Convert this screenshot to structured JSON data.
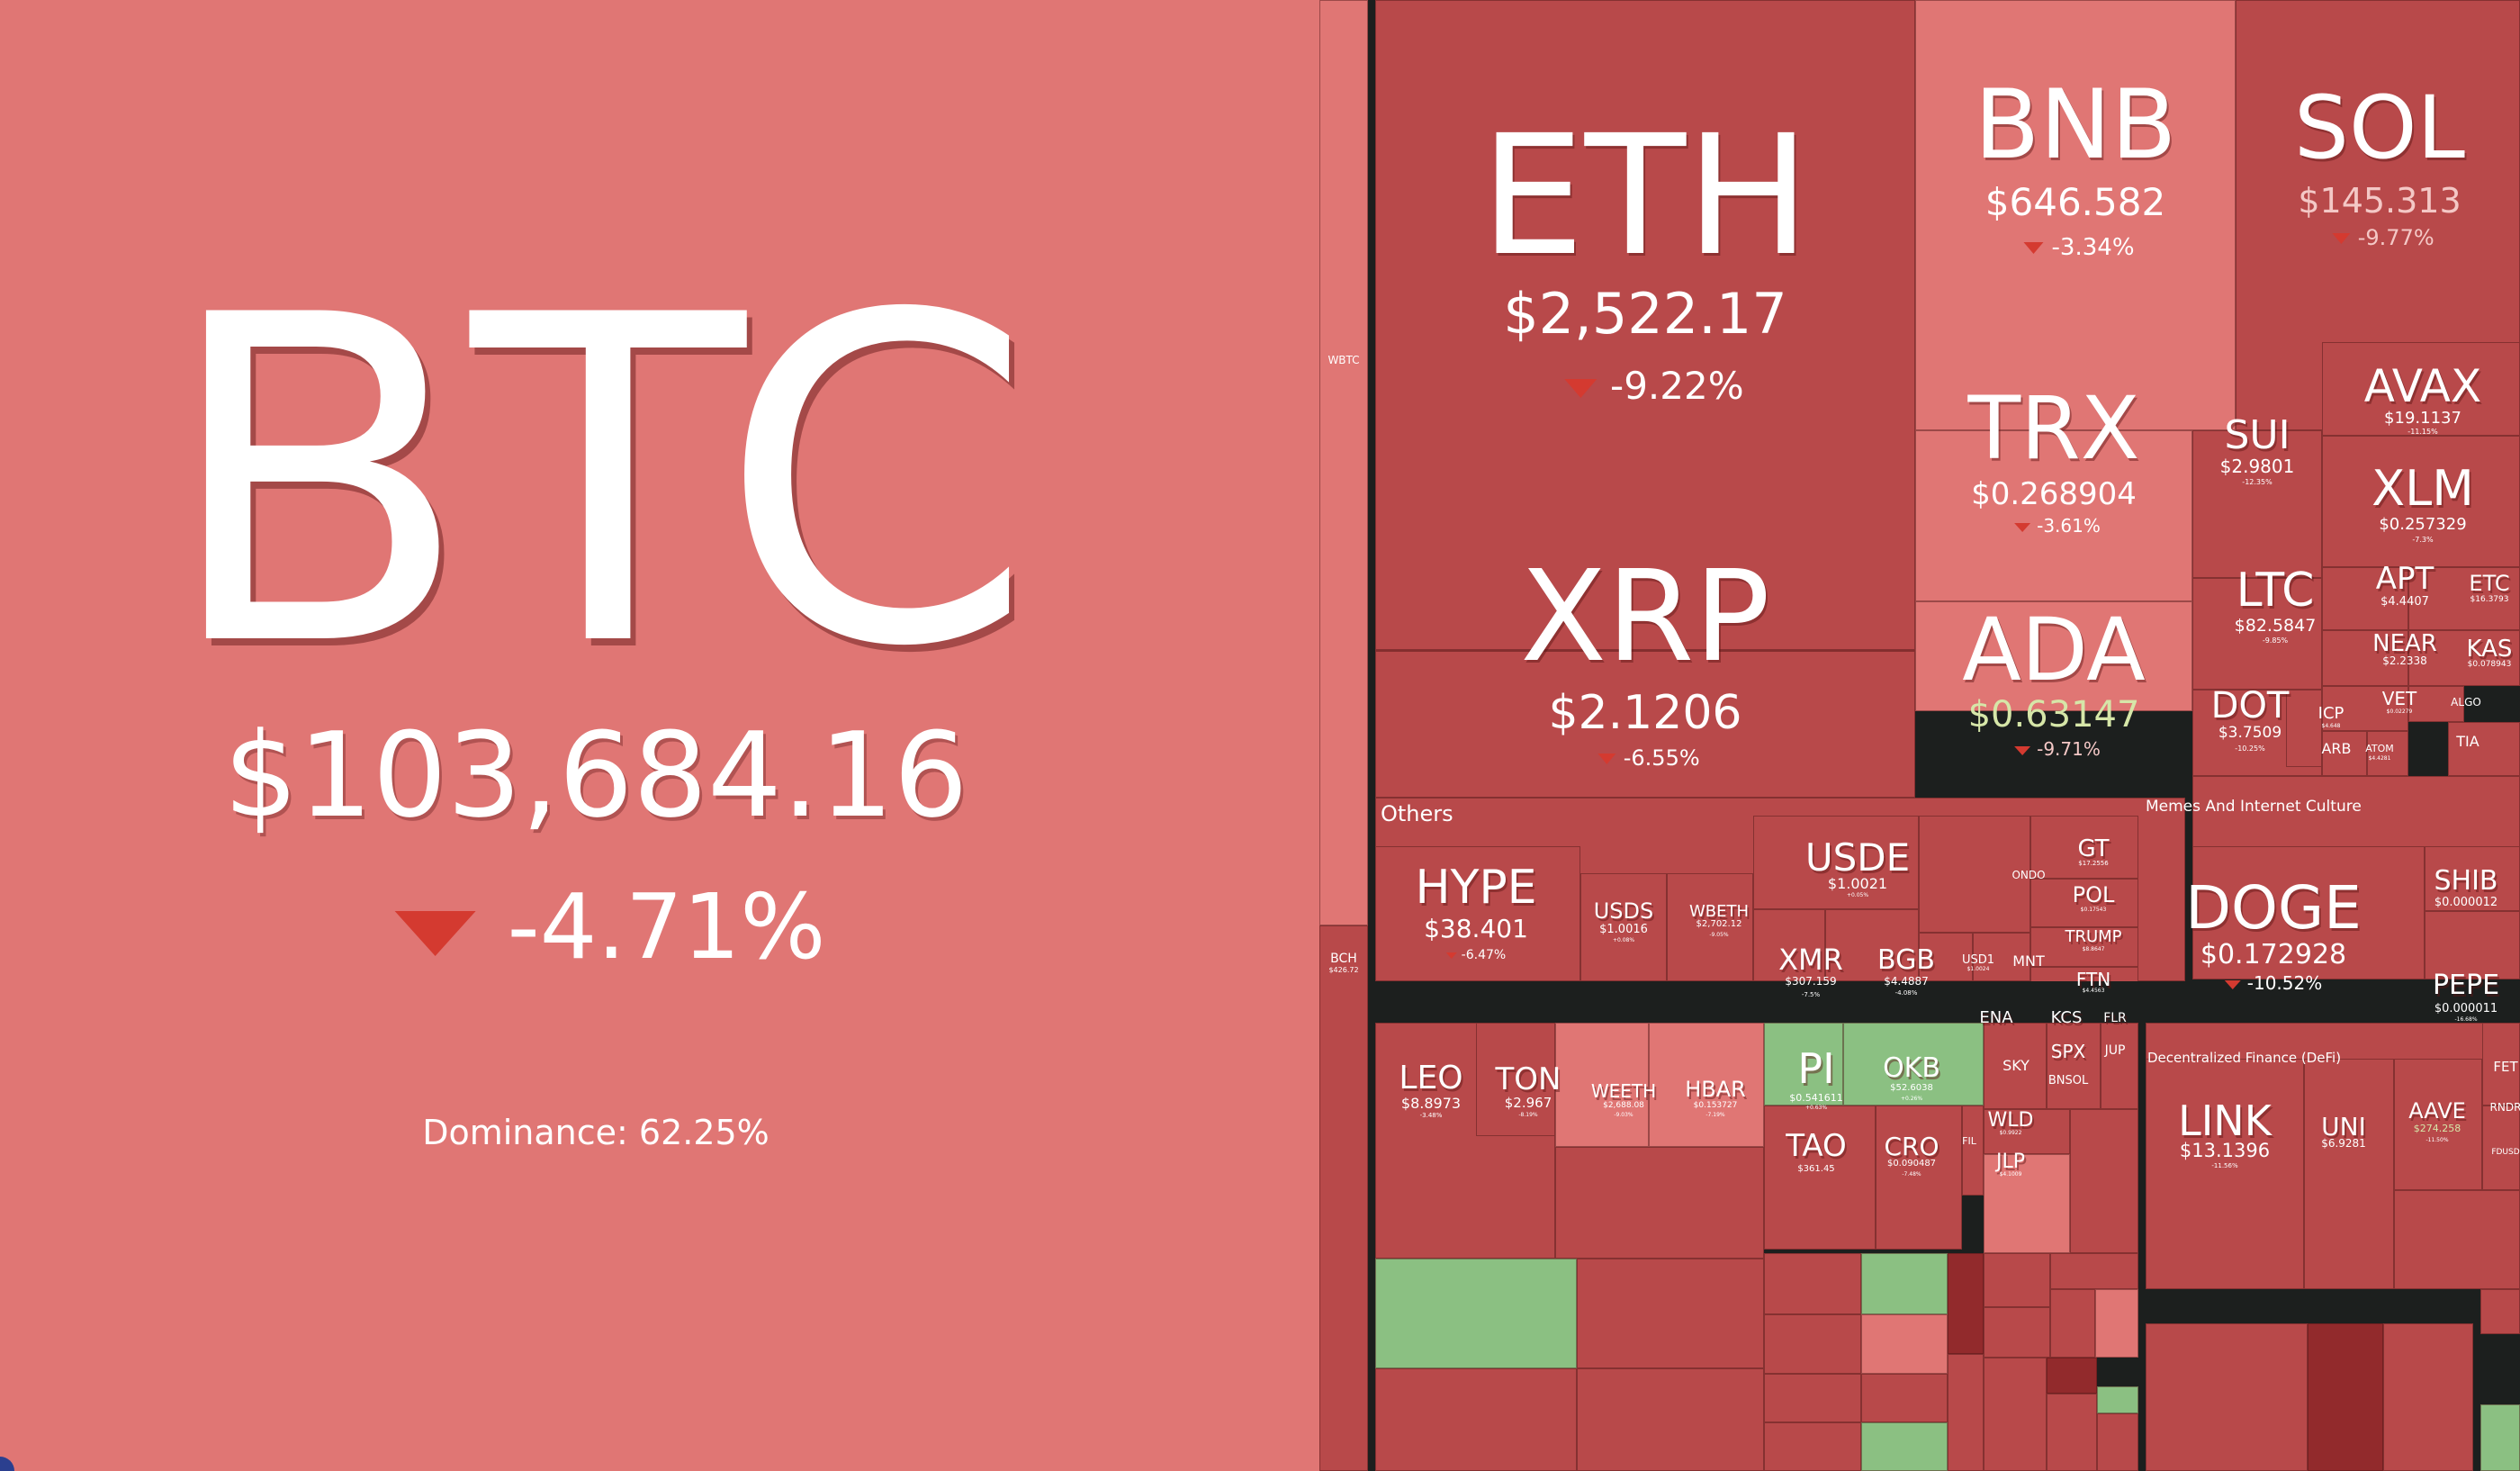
{
  "btc": {
    "symbol": "BTC",
    "price": "$103,684.16",
    "change": "-4.71%",
    "dominance": "Dominance: 62.25%"
  },
  "sectors": {
    "others": "Others",
    "memes": "Memes And Internet Culture",
    "defi": "Decentralized Finance (DeFi)"
  },
  "coins": {
    "eth": {
      "symbol": "ETH",
      "price": "$2,522.17",
      "change": "-9.22%"
    },
    "xrp": {
      "symbol": "XRP",
      "price": "$2.1206",
      "change": "-6.55%"
    },
    "bnb": {
      "symbol": "BNB",
      "price": "$646.582",
      "change": "-3.34%"
    },
    "sol": {
      "symbol": "SOL",
      "price": "$145.313",
      "change": "-9.77%"
    },
    "trx": {
      "symbol": "TRX",
      "price": "$0.268904",
      "change": "-3.61%"
    },
    "ada": {
      "symbol": "ADA",
      "price": "$0.63147",
      "change": "-9.71%"
    },
    "sui": {
      "symbol": "SUI",
      "price": "$2.9801",
      "change": "-12.35%"
    },
    "avax": {
      "symbol": "AVAX",
      "price": "$19.1137",
      "change": "-11.15%"
    },
    "xlm": {
      "symbol": "XLM",
      "price": "$0.257329",
      "change": "-7.3%"
    },
    "ltc": {
      "symbol": "LTC",
      "price": "$82.5847",
      "change": "-9.85%"
    },
    "apt": {
      "symbol": "APT",
      "price": "$4.4407",
      "change": ""
    },
    "etc": {
      "symbol": "ETC",
      "price": "$16.3793",
      "change": ""
    },
    "near": {
      "symbol": "NEAR",
      "price": "$2.2338",
      "change": ""
    },
    "kas": {
      "symbol": "KAS",
      "price": "$0.078943",
      "change": ""
    },
    "dot": {
      "symbol": "DOT",
      "price": "$3.7509",
      "change": "-10.25%"
    },
    "icp": {
      "symbol": "ICP",
      "price": "$4.648",
      "change": ""
    },
    "vet": {
      "symbol": "VET",
      "price": "$0.02279",
      "change": ""
    },
    "algo": {
      "symbol": "ALGO",
      "price": "",
      "change": ""
    },
    "arb": {
      "symbol": "ARB",
      "price": "",
      "change": ""
    },
    "atom": {
      "symbol": "ATOM",
      "price": "$4.4281",
      "change": ""
    },
    "tia": {
      "symbol": "TIA",
      "price": "",
      "change": ""
    },
    "hype": {
      "symbol": "HYPE",
      "price": "$38.401",
      "change": "-6.47%"
    },
    "usds": {
      "symbol": "USDS",
      "price": "$1.0016",
      "change": "+0.08%"
    },
    "wbeth": {
      "symbol": "WBETH",
      "price": "$2,702.12",
      "change": "-9.05%"
    },
    "usde": {
      "symbol": "USDE",
      "price": "$1.0021",
      "change": "+0.05%"
    },
    "xmr": {
      "symbol": "XMR",
      "price": "$307.159",
      "change": "-7.5%"
    },
    "bgb": {
      "symbol": "BGB",
      "price": "$4.4887",
      "change": "-4.08%"
    },
    "gt": {
      "symbol": "GT",
      "price": "$17.2556",
      "change": ""
    },
    "pol": {
      "symbol": "POL",
      "price": "$0.17543",
      "change": ""
    },
    "trump": {
      "symbol": "TRUMP",
      "price": "$8.8647",
      "change": ""
    },
    "ftn": {
      "symbol": "FTN",
      "price": "$4.4563",
      "change": ""
    },
    "ondo": {
      "symbol": "ONDO",
      "price": "",
      "change": ""
    },
    "usd1": {
      "symbol": "USD1",
      "price": "$1.0024",
      "change": ""
    },
    "mnt": {
      "symbol": "MNT",
      "price": "",
      "change": ""
    },
    "doge": {
      "symbol": "DOGE",
      "price": "$0.172928",
      "change": "-10.52%"
    },
    "shib": {
      "symbol": "SHIB",
      "price": "$0.000012",
      "change": ""
    },
    "pepe": {
      "symbol": "PEPE",
      "price": "$0.000011",
      "change": "-16.68%"
    },
    "leo": {
      "symbol": "LEO",
      "price": "$8.8973",
      "change": "-3.48%"
    },
    "ton": {
      "symbol": "TON",
      "price": "$2.967",
      "change": "-8.19%"
    },
    "weeth": {
      "symbol": "WEETH",
      "price": "$2,688.08",
      "change": "-9.03%"
    },
    "hbar": {
      "symbol": "HBAR",
      "price": "$0.153727",
      "change": "-7.19%"
    },
    "pi": {
      "symbol": "PI",
      "price": "$0.541611",
      "change": "+0.63%"
    },
    "okb": {
      "symbol": "OKB",
      "price": "$52.6038",
      "change": "+0.26%"
    },
    "tao": {
      "symbol": "TAO",
      "price": "$361.45",
      "change": ""
    },
    "cro": {
      "symbol": "CRO",
      "price": "$0.090487",
      "change": "-7.48%"
    },
    "ena": {
      "symbol": "ENA",
      "price": "",
      "change": ""
    },
    "kcs": {
      "symbol": "KCS",
      "price": "",
      "change": ""
    },
    "flr": {
      "symbol": "FLR",
      "price": "",
      "change": ""
    },
    "spx": {
      "symbol": "SPX",
      "price": "",
      "change": ""
    },
    "jup": {
      "symbol": "JUP",
      "price": "",
      "change": ""
    },
    "sky": {
      "symbol": "SKY",
      "price": "",
      "change": ""
    },
    "bnsol": {
      "symbol": "BNSOL",
      "price": "",
      "change": ""
    },
    "wld": {
      "symbol": "WLD",
      "price": "$0.9922",
      "change": ""
    },
    "jlp": {
      "symbol": "JLP",
      "price": "$4.1009",
      "change": ""
    },
    "fil": {
      "symbol": "FIL",
      "price": "",
      "change": ""
    },
    "link": {
      "symbol": "LINK",
      "price": "$13.1396",
      "change": "-11.56%"
    },
    "uni": {
      "symbol": "UNI",
      "price": "$6.9281",
      "change": ""
    },
    "aave": {
      "symbol": "AAVE",
      "price": "$274.258",
      "change": "-11.50%"
    },
    "fet": {
      "symbol": "FET",
      "price": "",
      "change": ""
    },
    "rndr": {
      "symbol": "RNDR",
      "price": "",
      "change": ""
    },
    "fdusd": {
      "symbol": "FDUSD",
      "price": "",
      "change": ""
    },
    "wbtc": {
      "symbol": "WBTC",
      "price": "",
      "change": ""
    },
    "bch": {
      "symbol": "BCH",
      "price": "$426.72",
      "change": ""
    }
  },
  "colors": {
    "down_light": "#e07674",
    "down": "#b8494a",
    "down_deep": "#922a2c",
    "up": "#8bc082",
    "background": "#1c1f1e"
  }
}
